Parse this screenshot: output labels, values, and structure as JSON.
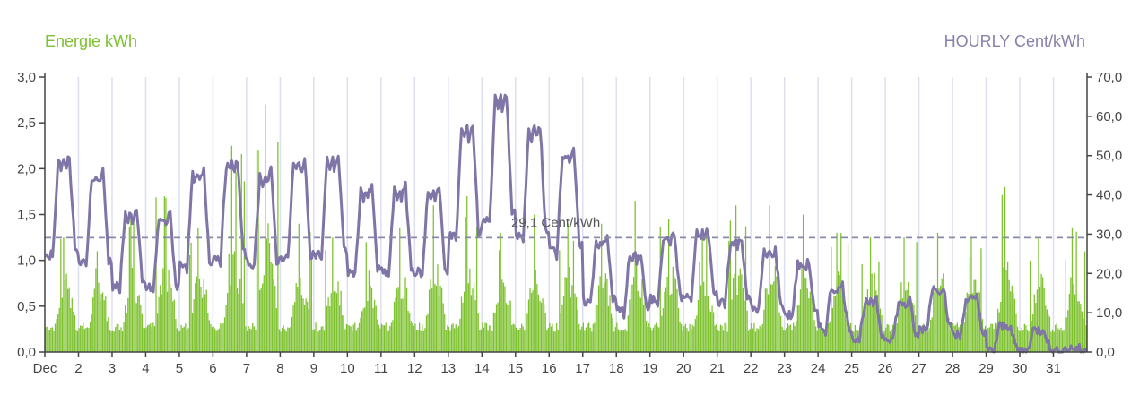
{
  "chart_data": {
    "type": "bar+line",
    "left_axis_label": "Energie kWh",
    "right_axis_label": "HOURLY Cent/kWh",
    "left_ylim": [
      0,
      3.0
    ],
    "right_ylim": [
      0,
      70
    ],
    "left_ticks": [
      "0,0",
      "0,5",
      "1,0",
      "1,5",
      "2,0",
      "2,5",
      "3,0"
    ],
    "right_ticks": [
      "0,0",
      "10,0",
      "20,0",
      "30,0",
      "40,0",
      "50,0",
      "60,0",
      "70,0"
    ],
    "x_ticks": [
      "Dec",
      "2",
      "3",
      "4",
      "5",
      "6",
      "7",
      "8",
      "9",
      "10",
      "11",
      "12",
      "13",
      "14",
      "15",
      "16",
      "17",
      "18",
      "19",
      "20",
      "21",
      "22",
      "23",
      "24",
      "25",
      "26",
      "27",
      "28",
      "29",
      "30",
      "31"
    ],
    "reference_line": {
      "value": 29.1,
      "axis": "right",
      "label": "29,1 Cent/kWh",
      "style": "dashed"
    },
    "daily_energy_peak_kwh": [
      1.25,
      1.1,
      1.45,
      1.7,
      1.35,
      2.25,
      2.7,
      1.4,
      1.25,
      1.2,
      1.35,
      1.6,
      1.7,
      1.3,
      1.5,
      1.4,
      1.4,
      1.65,
      1.45,
      1.3,
      1.6,
      1.6,
      1.5,
      1.3,
      1.25,
      1.25,
      1.3,
      1.25,
      1.8,
      1.25,
      1.35
    ],
    "daily_price_peak_cent": [
      50,
      46,
      36,
      35,
      46,
      49,
      46,
      49,
      50,
      42,
      42,
      42,
      58,
      66,
      58,
      52,
      29,
      25,
      30,
      31,
      29,
      26,
      23,
      17,
      13,
      13,
      17,
      14,
      7,
      6,
      1
    ],
    "series": [
      {
        "name": "Energie kWh",
        "axis": "left",
        "kind": "bar",
        "color": "#7dc12f"
      },
      {
        "name": "HOURLY Cent/kWh",
        "axis": "right",
        "kind": "line",
        "color": "#7f75a6"
      }
    ],
    "grid": "vertical-day-lines",
    "colors": {
      "energy": "#7dc12f",
      "price": "#7f75a6",
      "ref": "#8a8aa8",
      "grid": "#dcdff0",
      "axis": "#444444"
    }
  }
}
